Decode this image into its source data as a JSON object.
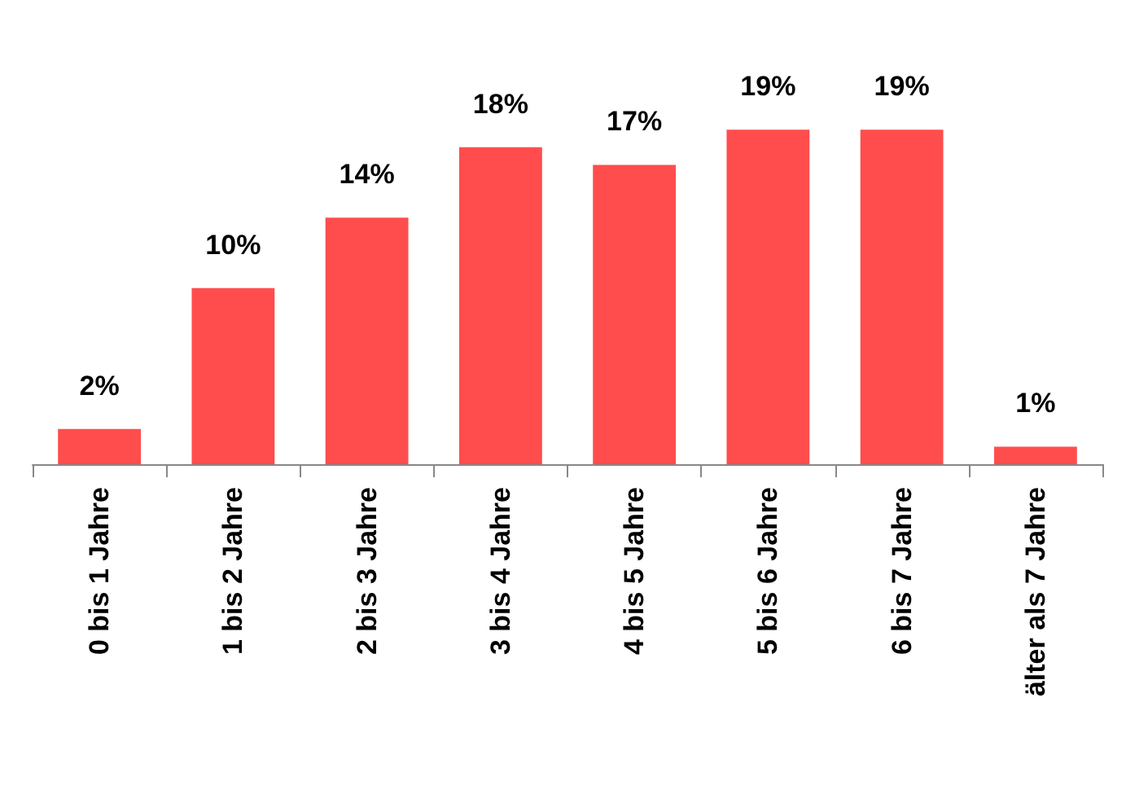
{
  "chart_data": {
    "type": "bar",
    "categories": [
      "0 bis 1 Jahre",
      "1 bis 2 Jahre",
      "2 bis 3 Jahre",
      "3 bis 4 Jahre",
      "4 bis 5 Jahre",
      "5 bis 6 Jahre",
      "6 bis 7 Jahre",
      "älter als 7 Jahre"
    ],
    "values": [
      2,
      10,
      14,
      18,
      17,
      19,
      19,
      1
    ],
    "value_labels": [
      "2%",
      "10%",
      "14%",
      "18%",
      "17%",
      "19%",
      "19%",
      "1%"
    ],
    "color": "#ff4d4d"
  }
}
